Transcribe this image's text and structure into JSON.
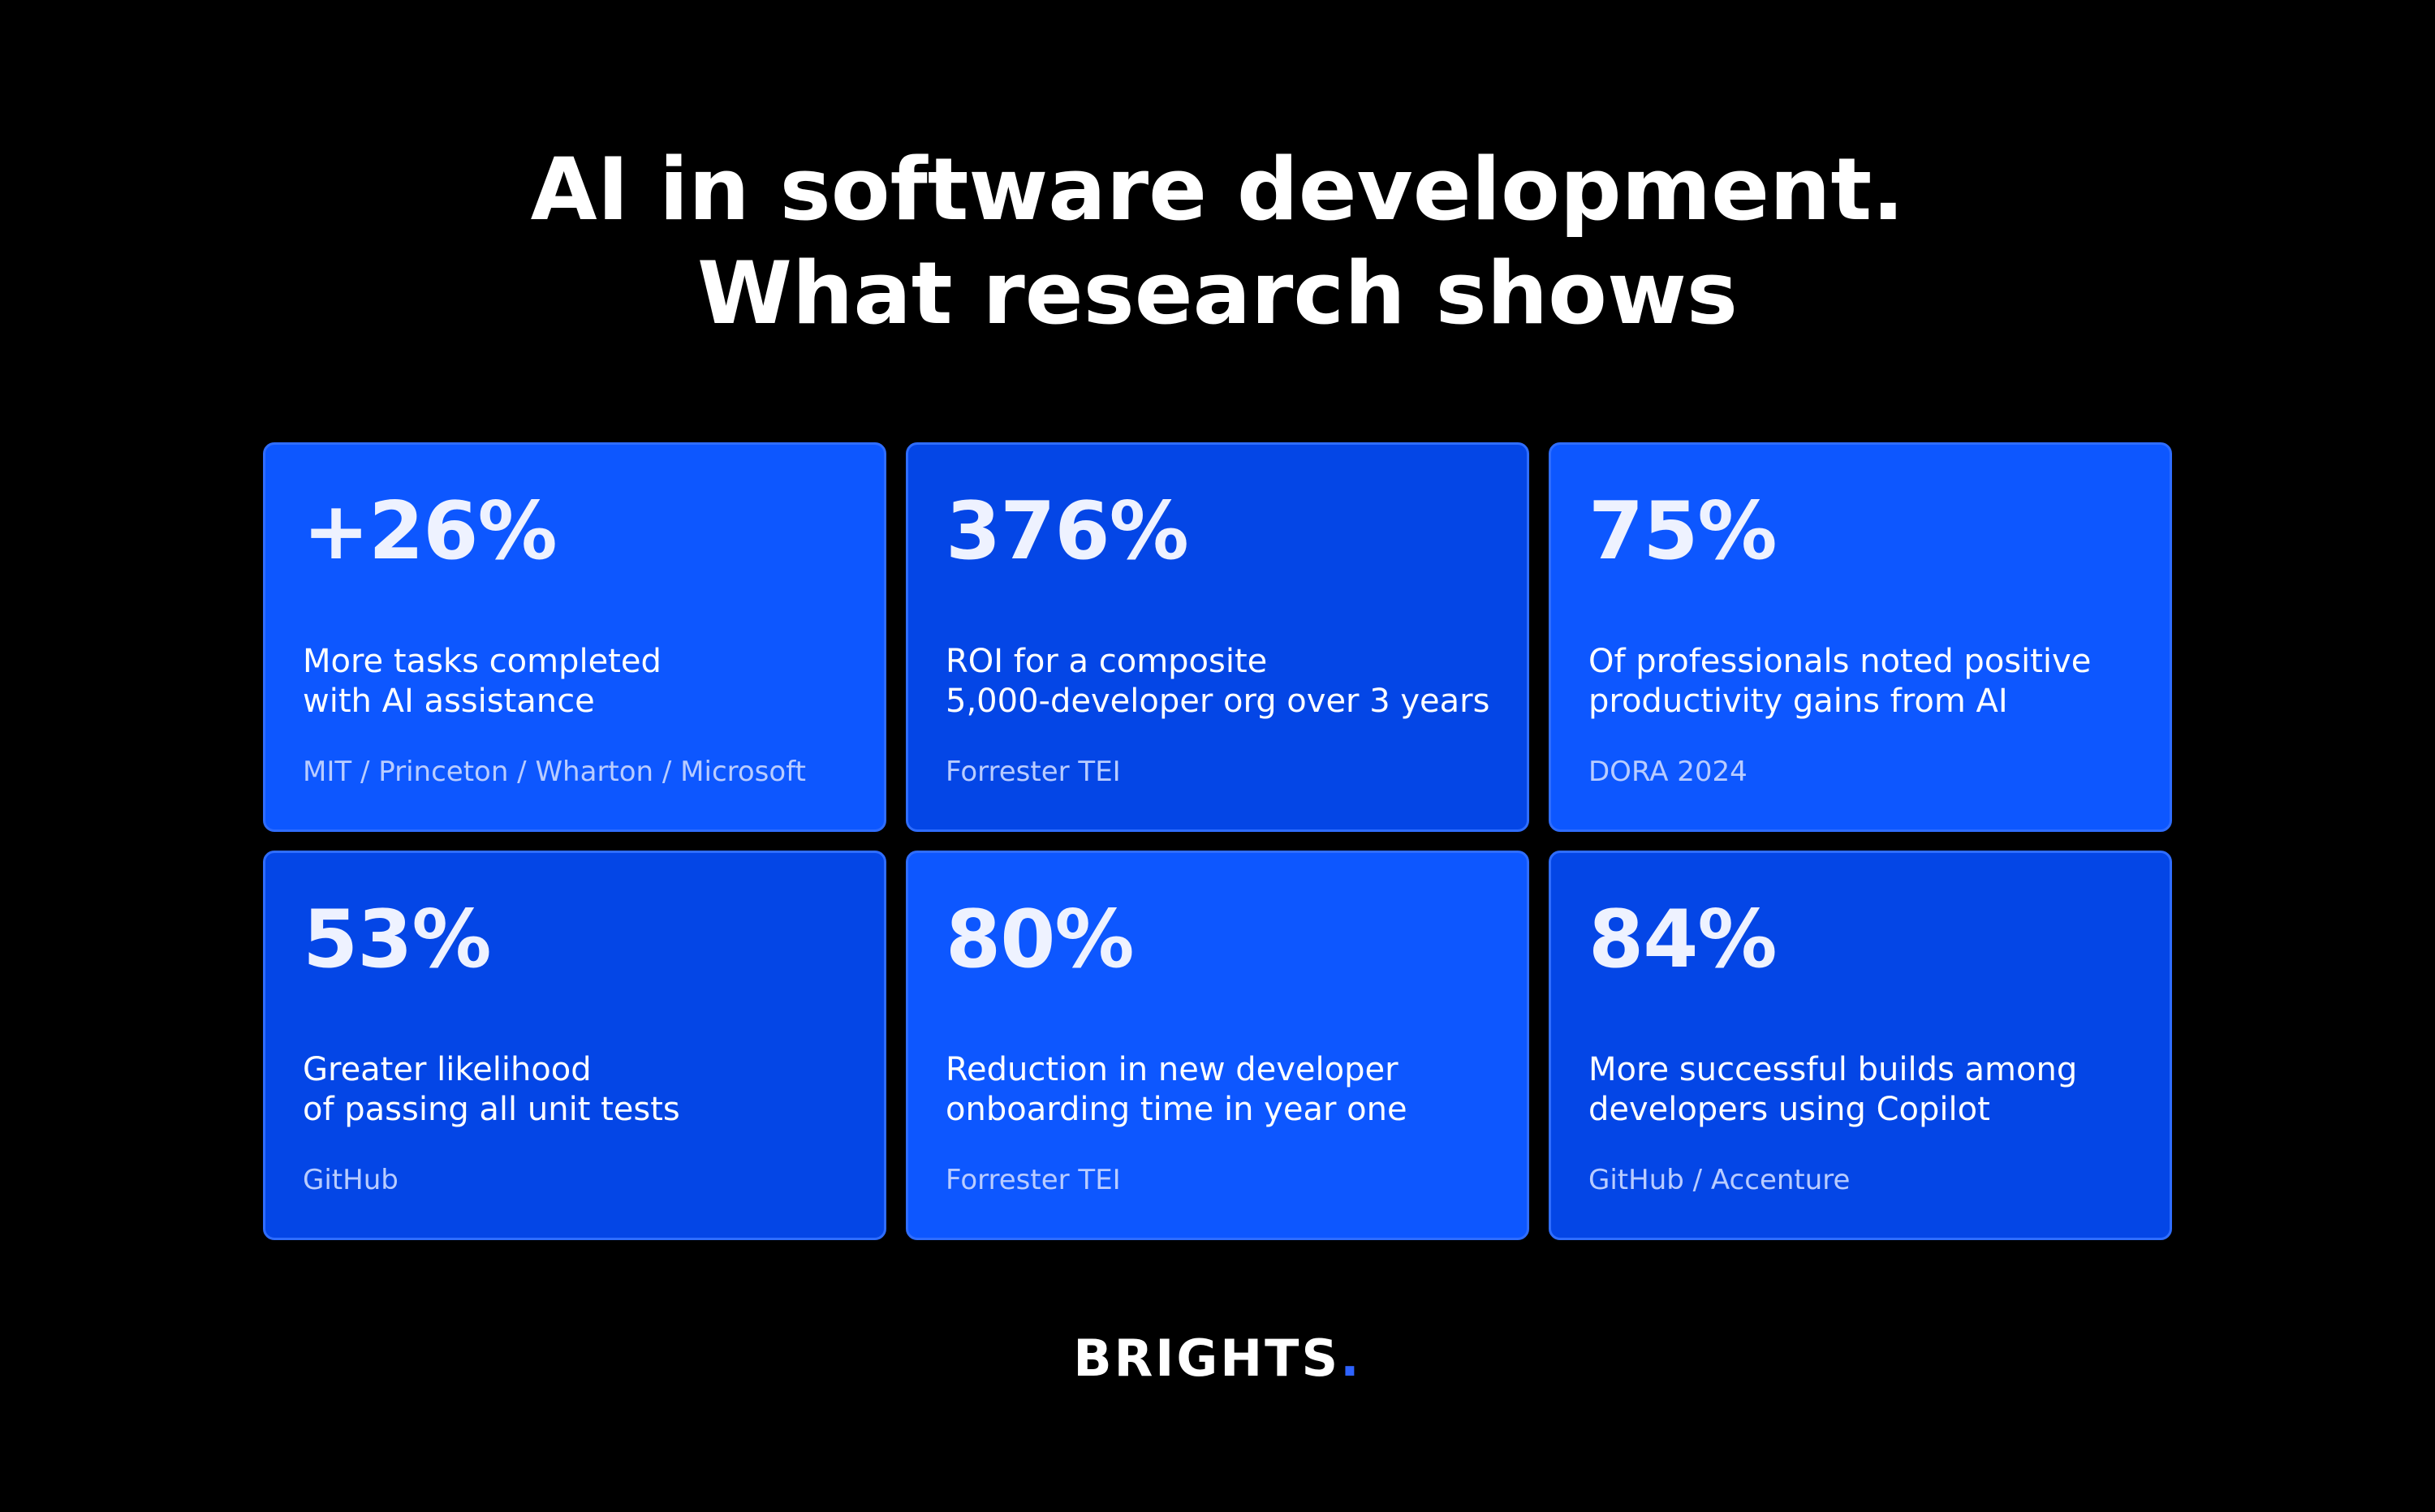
{
  "header": {
    "title_line1": "AI in software development.",
    "title_line2": "What research shows"
  },
  "cards": [
    {
      "stat": "+26%",
      "desc_line1": "More tasks completed",
      "desc_line2": "with AI assistance",
      "source": "MIT / Princeton / Wharton / Microsoft"
    },
    {
      "stat": "376%",
      "desc_line1": "ROI for a composite",
      "desc_line2": "5,000-developer org over 3 years",
      "source": "Forrester TEI"
    },
    {
      "stat": "75%",
      "desc_line1": "Of professionals noted positive",
      "desc_line2": "productivity gains from AI",
      "source": "DORA 2024"
    },
    {
      "stat": "53%",
      "desc_line1": "Greater likelihood",
      "desc_line2": "of passing all unit tests",
      "source": "GitHub"
    },
    {
      "stat": "80%",
      "desc_line1": "Reduction in new developer",
      "desc_line2": "onboarding time in year one",
      "source": "Forrester TEI"
    },
    {
      "stat": "84%",
      "desc_line1": "More successful builds among",
      "desc_line2": "developers using Copilot",
      "source": "GitHub / Accenture"
    }
  ],
  "footer": {
    "logo_text": "BRIGHTS",
    "logo_dot": "."
  },
  "colors": {
    "background": "#000000",
    "card_light": "#0d57ff",
    "card_dark": "#0446e6",
    "source_text": "#b9ccff",
    "logo_dot": "#2e63ff"
  }
}
